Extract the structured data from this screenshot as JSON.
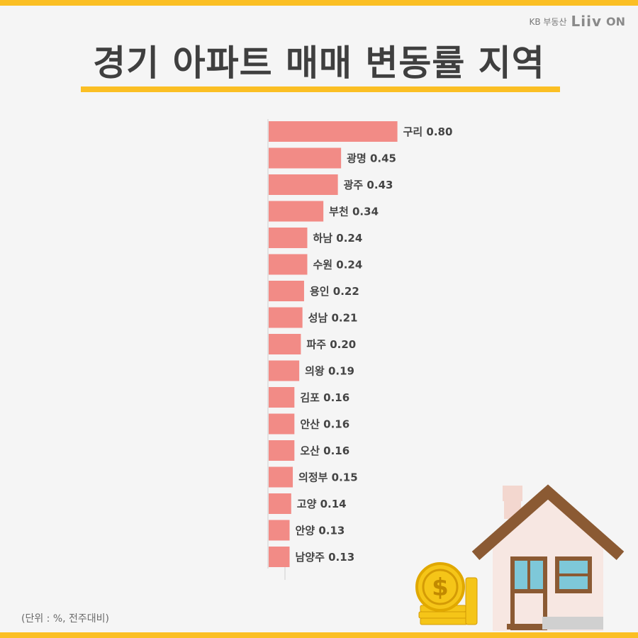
{
  "brand": {
    "kb": "KB 부동산",
    "liiv": "Liiv",
    "on": "ON"
  },
  "title": "경기 아파트 매매 변동률 지역",
  "unit_note": "(단위 : %, 전주대비)",
  "colors": {
    "bar": "#f28b86",
    "accent": "#fbbf24"
  },
  "chart_data": {
    "type": "bar",
    "orientation": "horizontal",
    "categories": [
      "구리",
      "광명",
      "광주",
      "부천",
      "하남",
      "수원",
      "용인",
      "성남",
      "파주",
      "의왕",
      "김포",
      "안산",
      "오산",
      "의정부",
      "고양",
      "안양",
      "남양주"
    ],
    "values": [
      0.8,
      0.45,
      0.43,
      0.34,
      0.24,
      0.24,
      0.22,
      0.21,
      0.2,
      0.19,
      0.16,
      0.16,
      0.16,
      0.15,
      0.14,
      0.13,
      0.13
    ],
    "value_labels": [
      "0.80",
      "0.45",
      "0.43",
      "0.34",
      "0.24",
      "0.24",
      "0.22",
      "0.21",
      "0.20",
      "0.19",
      "0.16",
      "0.16",
      "0.16",
      "0.15",
      "0.14",
      "0.13",
      "0.13"
    ],
    "grid": false
  }
}
